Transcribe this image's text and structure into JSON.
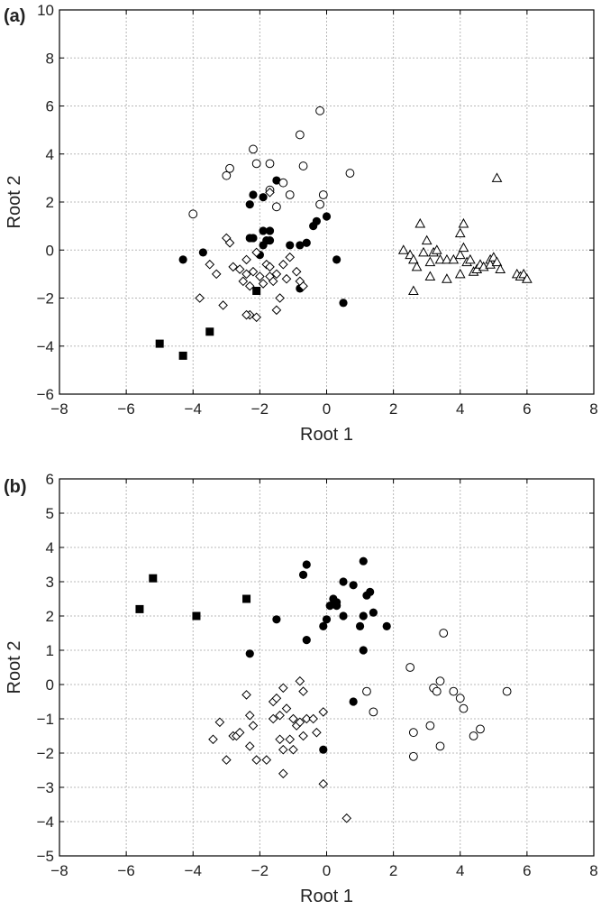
{
  "chart_data": [
    {
      "type": "scatter",
      "panel_label": "(a)",
      "xlabel": "Root 1",
      "ylabel": "Root 2",
      "xlim": [
        -8,
        8
      ],
      "ylim": [
        -6,
        10
      ],
      "xticks": [
        -8,
        -6,
        -4,
        -2,
        0,
        2,
        4,
        6,
        8
      ],
      "yticks": [
        -6,
        -4,
        -2,
        0,
        2,
        4,
        6,
        8,
        10
      ],
      "tick_labels_x": [
        "−8",
        "−6",
        "−4",
        "−2",
        "0",
        "2",
        "4",
        "6",
        "8"
      ],
      "tick_labels_y": [
        "−6",
        "−4",
        "−2",
        "0",
        "2",
        "4",
        "6",
        "8",
        "10"
      ],
      "grid": true,
      "series": [
        {
          "marker": "filled-square",
          "points": [
            [
              -5.0,
              -3.9
            ],
            [
              -4.3,
              -4.4
            ],
            [
              -3.5,
              -3.4
            ],
            [
              -2.1,
              -1.7
            ]
          ]
        },
        {
          "marker": "filled-circle",
          "points": [
            [
              -4.3,
              -0.4
            ],
            [
              -3.7,
              -0.1
            ],
            [
              -2.3,
              0.5
            ],
            [
              -2.3,
              1.9
            ],
            [
              -2.2,
              2.3
            ],
            [
              -2.2,
              0.5
            ],
            [
              -2.0,
              -0.2
            ],
            [
              -1.9,
              0.8
            ],
            [
              -1.9,
              0.2
            ],
            [
              -1.9,
              2.2
            ],
            [
              -1.8,
              0.4
            ],
            [
              -1.7,
              0.8
            ],
            [
              -1.7,
              0.4
            ],
            [
              -1.5,
              2.9
            ],
            [
              -1.1,
              0.2
            ],
            [
              -0.8,
              -1.6
            ],
            [
              -0.8,
              0.2
            ],
            [
              -0.6,
              0.3
            ],
            [
              -0.4,
              1.0
            ],
            [
              -0.3,
              1.2
            ],
            [
              -0.0,
              1.4
            ],
            [
              0.3,
              -0.4
            ],
            [
              0.5,
              -2.2
            ]
          ]
        },
        {
          "marker": "open-circle",
          "points": [
            [
              -4.0,
              1.5
            ],
            [
              -3.0,
              3.1
            ],
            [
              -2.9,
              3.4
            ],
            [
              -2.2,
              4.2
            ],
            [
              -2.1,
              3.6
            ],
            [
              -1.7,
              3.6
            ],
            [
              -1.7,
              2.5
            ],
            [
              -1.5,
              1.8
            ],
            [
              -1.3,
              2.8
            ],
            [
              -1.1,
              2.3
            ],
            [
              -0.7,
              3.5
            ],
            [
              -0.8,
              4.8
            ],
            [
              -0.2,
              1.9
            ],
            [
              -0.1,
              2.3
            ],
            [
              -0.2,
              5.8
            ],
            [
              0.7,
              3.2
            ]
          ]
        },
        {
          "marker": "open-diamond",
          "points": [
            [
              -3.8,
              -2.0
            ],
            [
              -3.5,
              -0.6
            ],
            [
              -3.3,
              -1.0
            ],
            [
              -3.1,
              -2.3
            ],
            [
              -3.0,
              0.5
            ],
            [
              -2.9,
              0.3
            ],
            [
              -2.8,
              -0.7
            ],
            [
              -2.6,
              -0.8
            ],
            [
              -2.5,
              -1.3
            ],
            [
              -2.4,
              -1.0
            ],
            [
              -2.4,
              -0.4
            ],
            [
              -2.3,
              -2.7
            ],
            [
              -2.3,
              -1.5
            ],
            [
              -2.1,
              -2.8
            ],
            [
              -2.2,
              -0.9
            ],
            [
              -2.1,
              -0.1
            ],
            [
              -2.0,
              -1.1
            ],
            [
              -1.9,
              -1.4
            ],
            [
              -1.8,
              -0.6
            ],
            [
              -1.7,
              -1.1
            ],
            [
              -1.7,
              -0.7
            ],
            [
              -1.6,
              -1.3
            ],
            [
              -1.5,
              -1.0
            ],
            [
              -1.5,
              -2.5
            ],
            [
              -1.4,
              -2.0
            ],
            [
              -1.3,
              -0.6
            ],
            [
              -1.2,
              -1.2
            ],
            [
              -0.9,
              -0.9
            ],
            [
              -0.8,
              -1.3
            ],
            [
              -0.7,
              -1.5
            ],
            [
              -1.7,
              2.4
            ],
            [
              -2.4,
              -2.7
            ],
            [
              -1.1,
              -0.3
            ]
          ]
        },
        {
          "marker": "open-triangle",
          "points": [
            [
              2.3,
              0.0
            ],
            [
              2.5,
              -0.2
            ],
            [
              2.6,
              -0.4
            ],
            [
              2.6,
              -1.7
            ],
            [
              2.7,
              -0.7
            ],
            [
              2.8,
              1.1
            ],
            [
              2.9,
              -0.1
            ],
            [
              3.0,
              0.4
            ],
            [
              3.1,
              -0.5
            ],
            [
              3.2,
              -0.1
            ],
            [
              3.3,
              0.0
            ],
            [
              3.4,
              -0.4
            ],
            [
              3.6,
              -0.4
            ],
            [
              3.6,
              -1.2
            ],
            [
              3.8,
              -0.4
            ],
            [
              4.0,
              -0.2
            ],
            [
              4.0,
              0.7
            ],
            [
              4.1,
              1.1
            ],
            [
              4.1,
              0.1
            ],
            [
              4.2,
              -0.5
            ],
            [
              4.3,
              -0.4
            ],
            [
              4.4,
              -0.9
            ],
            [
              4.5,
              -0.8
            ],
            [
              4.6,
              -0.6
            ],
            [
              4.7,
              -0.7
            ],
            [
              4.9,
              -0.4
            ],
            [
              4.9,
              -0.6
            ],
            [
              5.0,
              -0.3
            ],
            [
              5.1,
              -0.5
            ],
            [
              5.2,
              -0.8
            ],
            [
              5.1,
              3.0
            ],
            [
              5.7,
              -1.0
            ],
            [
              5.8,
              -1.1
            ],
            [
              5.9,
              -1.0
            ],
            [
              6.0,
              -1.2
            ],
            [
              4.0,
              -1.0
            ],
            [
              3.1,
              -1.1
            ]
          ]
        }
      ]
    },
    {
      "type": "scatter",
      "panel_label": "(b)",
      "xlabel": "Root 1",
      "ylabel": "Root 2",
      "xlim": [
        -8,
        8
      ],
      "ylim": [
        -5,
        6
      ],
      "xticks": [
        -8,
        -6,
        -4,
        -2,
        0,
        2,
        4,
        6,
        8
      ],
      "yticks": [
        -5,
        -4,
        -3,
        -2,
        -1,
        0,
        1,
        2,
        3,
        4,
        5,
        6
      ],
      "tick_labels_x": [
        "−8",
        "−6",
        "−4",
        "−2",
        "0",
        "2",
        "4",
        "6",
        "8"
      ],
      "tick_labels_y": [
        "−5",
        "−4",
        "−3",
        "−2",
        "−1",
        "0",
        "1",
        "2",
        "3",
        "4",
        "5",
        "6"
      ],
      "grid": true,
      "series": [
        {
          "marker": "filled-square",
          "points": [
            [
              -5.6,
              2.2
            ],
            [
              -5.2,
              3.1
            ],
            [
              -3.9,
              2.0
            ],
            [
              -2.4,
              2.5
            ]
          ]
        },
        {
          "marker": "filled-circle",
          "points": [
            [
              -2.3,
              0.9
            ],
            [
              -1.5,
              1.9
            ],
            [
              -0.7,
              3.2
            ],
            [
              -0.6,
              3.5
            ],
            [
              -0.6,
              1.3
            ],
            [
              -0.1,
              1.7
            ],
            [
              0.0,
              1.9
            ],
            [
              0.1,
              2.3
            ],
            [
              0.2,
              2.5
            ],
            [
              0.3,
              2.4
            ],
            [
              0.5,
              3.0
            ],
            [
              0.5,
              2.0
            ],
            [
              0.8,
              2.9
            ],
            [
              1.0,
              1.7
            ],
            [
              1.1,
              1.0
            ],
            [
              1.1,
              3.6
            ],
            [
              1.2,
              2.6
            ],
            [
              1.3,
              2.7
            ],
            [
              1.4,
              2.1
            ],
            [
              1.8,
              1.7
            ],
            [
              0.8,
              -0.5
            ],
            [
              -0.1,
              -1.9
            ],
            [
              1.1,
              2.0
            ],
            [
              0.3,
              2.3
            ]
          ]
        },
        {
          "marker": "open-circle",
          "points": [
            [
              1.2,
              -0.2
            ],
            [
              1.4,
              -0.8
            ],
            [
              2.5,
              0.5
            ],
            [
              2.6,
              -1.4
            ],
            [
              2.6,
              -2.1
            ],
            [
              3.1,
              -1.2
            ],
            [
              3.2,
              -0.1
            ],
            [
              3.3,
              -0.2
            ],
            [
              3.4,
              0.1
            ],
            [
              3.4,
              -1.8
            ],
            [
              3.5,
              1.5
            ],
            [
              3.8,
              -0.2
            ],
            [
              4.0,
              -0.4
            ],
            [
              4.1,
              -0.7
            ],
            [
              4.4,
              -1.5
            ],
            [
              4.6,
              -1.3
            ],
            [
              5.4,
              -0.2
            ]
          ]
        },
        {
          "marker": "open-diamond",
          "points": [
            [
              -3.4,
              -1.6
            ],
            [
              -3.2,
              -1.1
            ],
            [
              -3.0,
              -2.2
            ],
            [
              -2.8,
              -1.5
            ],
            [
              -2.7,
              -1.5
            ],
            [
              -2.6,
              -1.4
            ],
            [
              -2.4,
              -0.3
            ],
            [
              -2.3,
              -1.8
            ],
            [
              -2.3,
              -0.9
            ],
            [
              -2.2,
              -1.2
            ],
            [
              -2.1,
              -2.2
            ],
            [
              -1.8,
              -2.2
            ],
            [
              -1.6,
              -1.0
            ],
            [
              -1.6,
              -0.5
            ],
            [
              -1.5,
              -0.4
            ],
            [
              -1.4,
              -0.9
            ],
            [
              -1.4,
              -1.6
            ],
            [
              -1.3,
              -1.9
            ],
            [
              -1.3,
              -2.6
            ],
            [
              -1.3,
              -0.1
            ],
            [
              -1.2,
              -0.7
            ],
            [
              -1.1,
              -1.6
            ],
            [
              -1.0,
              -1.0
            ],
            [
              -0.9,
              -1.2
            ],
            [
              -0.8,
              -1.1
            ],
            [
              -0.7,
              -0.2
            ],
            [
              -0.7,
              -1.5
            ],
            [
              -0.6,
              -1.0
            ],
            [
              -0.4,
              -1.0
            ],
            [
              -0.3,
              -1.4
            ],
            [
              -0.1,
              -0.8
            ],
            [
              -0.1,
              -2.9
            ],
            [
              0.6,
              -3.9
            ],
            [
              -0.8,
              0.1
            ],
            [
              -1.0,
              -1.9
            ]
          ]
        }
      ]
    }
  ]
}
